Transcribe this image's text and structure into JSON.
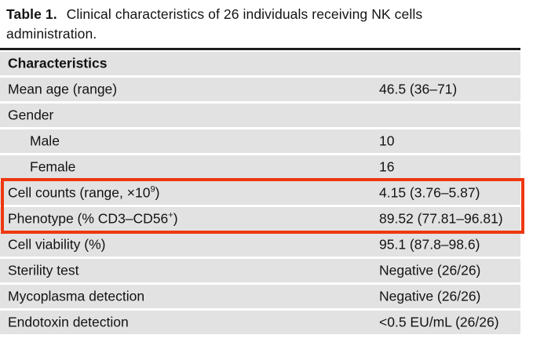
{
  "caption": {
    "label": "Table 1.",
    "text": "Clinical characteristics of 26 individuals receiving NK cells administration."
  },
  "table": {
    "header": "Characteristics",
    "rows": [
      {
        "label": "Mean age (range)",
        "sup": "",
        "after": "",
        "value": "46.5 (36–71)"
      },
      {
        "label": "Gender",
        "sup": "",
        "after": "",
        "value": ""
      },
      {
        "label": "Male",
        "sup": "",
        "after": "",
        "value": "10"
      },
      {
        "label": "Female",
        "sup": "",
        "after": "",
        "value": "16"
      },
      {
        "label": "Cell counts (range, ×10",
        "sup": "9",
        "after": ")",
        "value": "4.15 (3.76–5.87)"
      },
      {
        "label": "Phenotype (% CD3–CD56",
        "sup": "+",
        "after": ")",
        "value": "89.52 (77.81–96.81)"
      },
      {
        "label": "Cell viability (%)",
        "sup": "",
        "after": "",
        "value": "95.1 (87.8–98.6)"
      },
      {
        "label": "Sterility test",
        "sup": "",
        "after": "",
        "value": "Negative (26/26)"
      },
      {
        "label": "Mycoplasma detection",
        "sup": "",
        "after": "",
        "value": "Negative (26/26)"
      },
      {
        "label": "Endotoxin detection",
        "sup": "",
        "after": "",
        "value": "<0.5 EU/mL (26/26)"
      }
    ]
  },
  "annotation": {
    "highlighted_rows": [
      "Cell counts (range, ×10⁹)",
      "Phenotype (% CD3–CD56⁺)"
    ]
  },
  "colors": {
    "row_background": "#e2e2e2",
    "highlight_border": "#ee3810",
    "top_rule": "#1c1c1c",
    "text": "#131313"
  }
}
